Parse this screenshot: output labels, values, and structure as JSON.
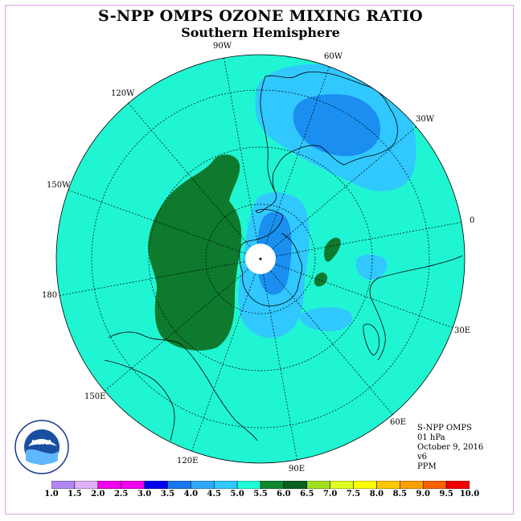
{
  "title": "S-NPP OMPS OZONE MIXING RATIO",
  "subtitle": "Southern Hemisphere",
  "longitude_labels": [
    {
      "text": "90W",
      "key": "90W"
    },
    {
      "text": "60W",
      "key": "60W"
    },
    {
      "text": "120W",
      "key": "120W"
    },
    {
      "text": "30W",
      "key": "30W"
    },
    {
      "text": "150W",
      "key": "150W"
    },
    {
      "text": "0",
      "key": "0"
    },
    {
      "text": "180",
      "key": "180"
    },
    {
      "text": "30E",
      "key": "30E"
    },
    {
      "text": "150E",
      "key": "150E"
    },
    {
      "text": "60E",
      "key": "60E"
    },
    {
      "text": "120E",
      "key": "120E"
    },
    {
      "text": "90E",
      "key": "90E"
    }
  ],
  "info": {
    "instrument": "S-NPP OMPS",
    "level": "01 hPa",
    "date": "October 9, 2016",
    "version": "v6",
    "units": "PPM"
  },
  "logo": {
    "text": "NOAA",
    "icon": "noaa-logo-icon"
  },
  "colorbar": {
    "labels": [
      "1.0",
      "1.5",
      "2.0",
      "2.5",
      "3.0",
      "3.5",
      "4.0",
      "4.5",
      "5.0",
      "5.5",
      "6.0",
      "6.5",
      "7.0",
      "7.5",
      "8.0",
      "8.5",
      "9.0",
      "9.5",
      "10.0"
    ],
    "colors": [
      "#b088f0",
      "#e0b0f8",
      "#f000f0",
      "#f000f0",
      "#0000f0",
      "#1878f0",
      "#30a8f8",
      "#30c8ff",
      "#20ffd8",
      "#108830",
      "#086020",
      "#a0e020",
      "#e0ff20",
      "#ffff00",
      "#ffc800",
      "#ffa000",
      "#ff6000",
      "#f00000",
      "#805030"
    ]
  },
  "colors": {
    "background_field": "#1ff5d2",
    "level_4_5": "#30c8ff",
    "level_4_0": "#1a8ff0",
    "level_5_5": "#0d7a2e",
    "coast": "#000000"
  }
}
